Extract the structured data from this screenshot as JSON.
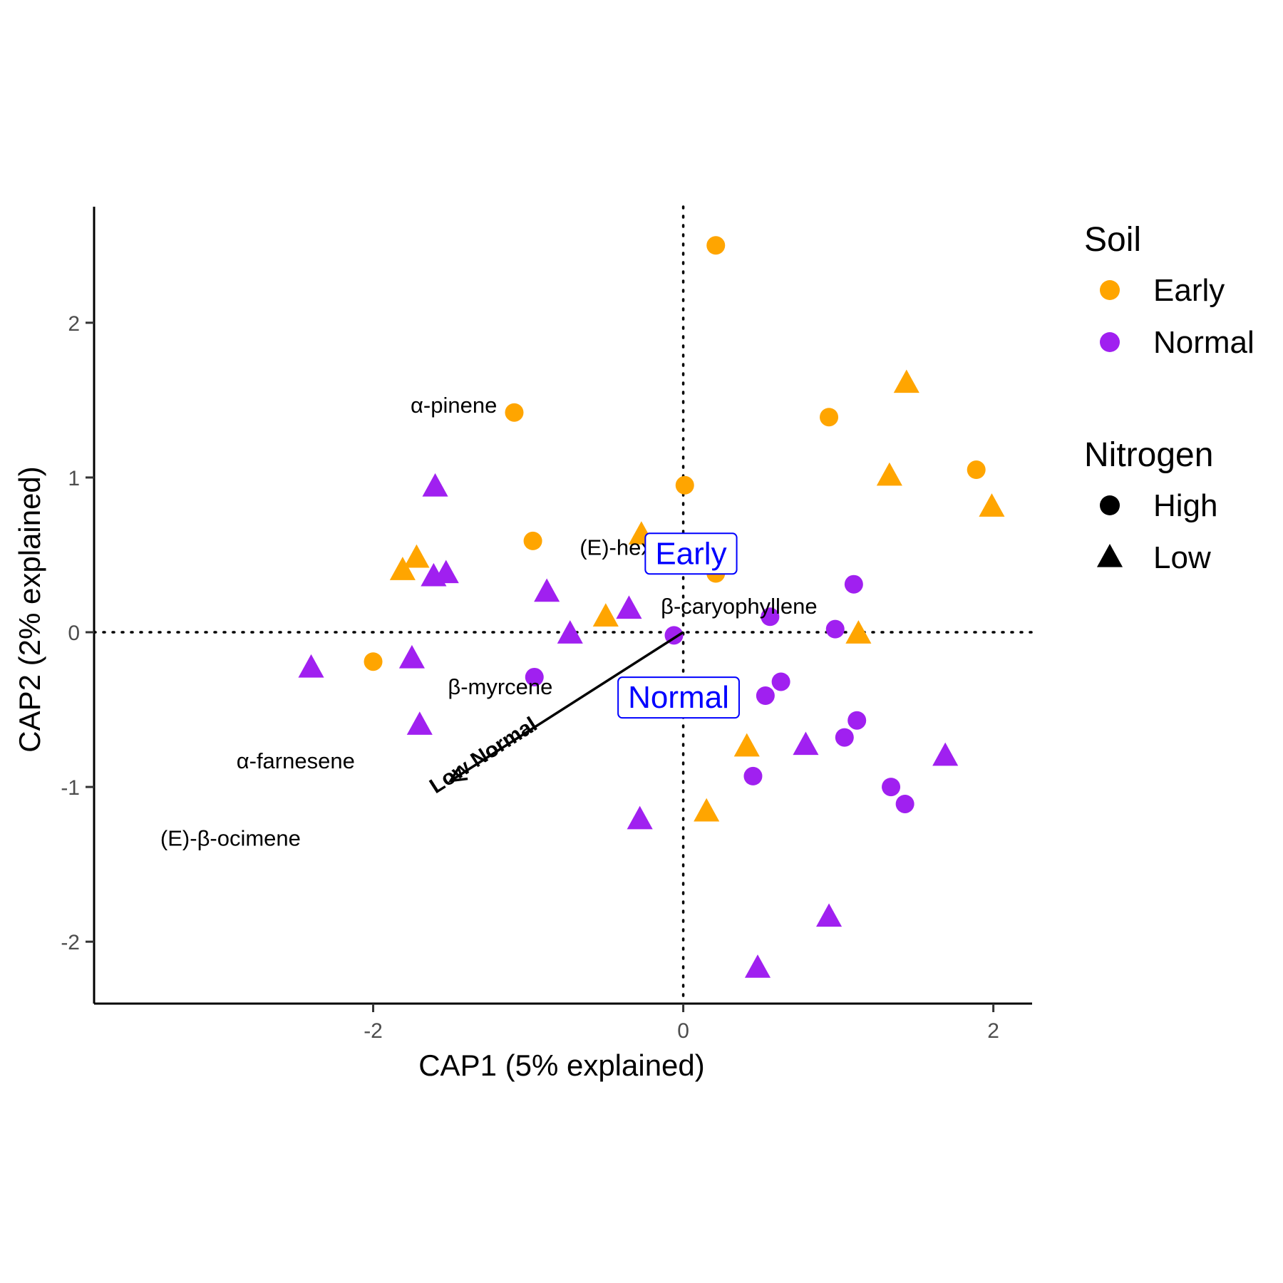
{
  "chart_data": {
    "type": "scatter",
    "title": "",
    "xlabel": "CAP1 (5% explained)",
    "ylabel": "CAP2 (2% explained)",
    "xlim": [
      -3.8,
      2.25
    ],
    "ylim": [
      -2.4,
      2.75
    ],
    "x_ticks": [
      {
        "value": -2,
        "label": "-2"
      },
      {
        "value": 0,
        "label": "0"
      },
      {
        "value": 2,
        "label": "2"
      }
    ],
    "y_ticks": [
      {
        "value": -2,
        "label": "-2"
      },
      {
        "value": -1,
        "label": "-1"
      },
      {
        "value": 0,
        "label": "0"
      },
      {
        "value": 1,
        "label": "1"
      },
      {
        "value": 2,
        "label": "2"
      }
    ],
    "grid": false,
    "reference_lines": {
      "x": 0,
      "y": 0,
      "style": "dotted"
    },
    "colors": {
      "Early": "#FFA500",
      "Normal": "#A020F0",
      "centroid_label": "#0000FF"
    },
    "legend": {
      "placement": "right",
      "groups": [
        {
          "title": "Soil",
          "entries": [
            {
              "label": "Early",
              "shape": "circle",
              "color": "#FFA500"
            },
            {
              "label": "Normal",
              "shape": "circle",
              "color": "#A020F0"
            }
          ]
        },
        {
          "title": "Nitrogen",
          "entries": [
            {
              "label": "High",
              "shape": "circle",
              "color": "#000000"
            },
            {
              "label": "Low",
              "shape": "triangle",
              "color": "#000000"
            }
          ]
        }
      ]
    },
    "points": [
      {
        "x": 0.21,
        "y": 2.5,
        "soil": "Early",
        "nitrogen": "High"
      },
      {
        "x": -1.09,
        "y": 1.42,
        "soil": "Early",
        "nitrogen": "High"
      },
      {
        "x": 0.94,
        "y": 1.39,
        "soil": "Early",
        "nitrogen": "High"
      },
      {
        "x": 1.89,
        "y": 1.05,
        "soil": "Early",
        "nitrogen": "High"
      },
      {
        "x": 0.01,
        "y": 0.95,
        "soil": "Early",
        "nitrogen": "High"
      },
      {
        "x": -0.97,
        "y": 0.59,
        "soil": "Early",
        "nitrogen": "High"
      },
      {
        "x": 0.21,
        "y": 0.38,
        "soil": "Early",
        "nitrogen": "High"
      },
      {
        "x": -2.0,
        "y": -0.19,
        "soil": "Early",
        "nitrogen": "High"
      },
      {
        "x": 1.44,
        "y": 1.61,
        "soil": "Early",
        "nitrogen": "Low"
      },
      {
        "x": 1.33,
        "y": 1.01,
        "soil": "Early",
        "nitrogen": "Low"
      },
      {
        "x": 1.99,
        "y": 0.81,
        "soil": "Early",
        "nitrogen": "Low"
      },
      {
        "x": -0.27,
        "y": 0.63,
        "soil": "Early",
        "nitrogen": "Low"
      },
      {
        "x": -1.72,
        "y": 0.48,
        "soil": "Early",
        "nitrogen": "Low"
      },
      {
        "x": -1.81,
        "y": 0.4,
        "soil": "Early",
        "nitrogen": "Low"
      },
      {
        "x": -0.5,
        "y": 0.1,
        "soil": "Early",
        "nitrogen": "Low"
      },
      {
        "x": 1.13,
        "y": -0.01,
        "soil": "Early",
        "nitrogen": "Low"
      },
      {
        "x": 0.41,
        "y": -0.74,
        "soil": "Early",
        "nitrogen": "Low"
      },
      {
        "x": 0.15,
        "y": -1.16,
        "soil": "Early",
        "nitrogen": "Low"
      },
      {
        "x": 1.1,
        "y": 0.31,
        "soil": "Normal",
        "nitrogen": "High"
      },
      {
        "x": 0.56,
        "y": 0.1,
        "soil": "Normal",
        "nitrogen": "High"
      },
      {
        "x": 0.98,
        "y": 0.02,
        "soil": "Normal",
        "nitrogen": "High"
      },
      {
        "x": -0.06,
        "y": -0.02,
        "soil": "Normal",
        "nitrogen": "High"
      },
      {
        "x": -0.96,
        "y": -0.29,
        "soil": "Normal",
        "nitrogen": "High"
      },
      {
        "x": 0.63,
        "y": -0.32,
        "soil": "Normal",
        "nitrogen": "High"
      },
      {
        "x": 0.53,
        "y": -0.41,
        "soil": "Normal",
        "nitrogen": "High"
      },
      {
        "x": 1.12,
        "y": -0.57,
        "soil": "Normal",
        "nitrogen": "High"
      },
      {
        "x": 1.04,
        "y": -0.68,
        "soil": "Normal",
        "nitrogen": "High"
      },
      {
        "x": 0.45,
        "y": -0.93,
        "soil": "Normal",
        "nitrogen": "High"
      },
      {
        "x": 1.34,
        "y": -1.0,
        "soil": "Normal",
        "nitrogen": "High"
      },
      {
        "x": 1.43,
        "y": -1.11,
        "soil": "Normal",
        "nitrogen": "High"
      },
      {
        "x": -1.6,
        "y": 0.94,
        "soil": "Normal",
        "nitrogen": "Low"
      },
      {
        "x": -1.53,
        "y": 0.38,
        "soil": "Normal",
        "nitrogen": "Low"
      },
      {
        "x": -1.61,
        "y": 0.36,
        "soil": "Normal",
        "nitrogen": "Low"
      },
      {
        "x": -0.88,
        "y": 0.26,
        "soil": "Normal",
        "nitrogen": "Low"
      },
      {
        "x": -0.35,
        "y": 0.15,
        "soil": "Normal",
        "nitrogen": "Low"
      },
      {
        "x": -0.73,
        "y": -0.01,
        "soil": "Normal",
        "nitrogen": "Low"
      },
      {
        "x": -2.4,
        "y": -0.23,
        "soil": "Normal",
        "nitrogen": "Low"
      },
      {
        "x": -1.75,
        "y": -0.17,
        "soil": "Normal",
        "nitrogen": "Low"
      },
      {
        "x": -1.7,
        "y": -0.6,
        "soil": "Normal",
        "nitrogen": "Low"
      },
      {
        "x": 0.79,
        "y": -0.73,
        "soil": "Normal",
        "nitrogen": "Low"
      },
      {
        "x": 1.69,
        "y": -0.8,
        "soil": "Normal",
        "nitrogen": "Low"
      },
      {
        "x": -0.28,
        "y": -1.21,
        "soil": "Normal",
        "nitrogen": "Low"
      },
      {
        "x": 0.94,
        "y": -1.84,
        "soil": "Normal",
        "nitrogen": "Low"
      },
      {
        "x": 0.48,
        "y": -2.17,
        "soil": "Normal",
        "nitrogen": "Low"
      }
    ],
    "species_labels": [
      {
        "text": "α-pinene",
        "x": -1.48,
        "y": 1.47
      },
      {
        "text": "(E)-hexenal",
        "x": -0.3,
        "y": 0.55
      },
      {
        "text": "β-caryophyllene",
        "x": 0.36,
        "y": 0.17
      },
      {
        "text": "β-myrcene",
        "x": -1.18,
        "y": -0.35
      },
      {
        "text": "α-farnesene",
        "x": -2.5,
        "y": -0.83
      },
      {
        "text": "(E)-β-ocimene",
        "x": -2.92,
        "y": -1.33
      }
    ],
    "centroid_labels": [
      {
        "text": "Early",
        "x": 0.05,
        "y": 0.51
      },
      {
        "text": "Normal",
        "x": -0.03,
        "y": -0.42
      }
    ],
    "arrow": {
      "label": "Low Normal",
      "from": [
        0,
        0
      ],
      "to": [
        -1.5,
        -0.96
      ]
    }
  }
}
